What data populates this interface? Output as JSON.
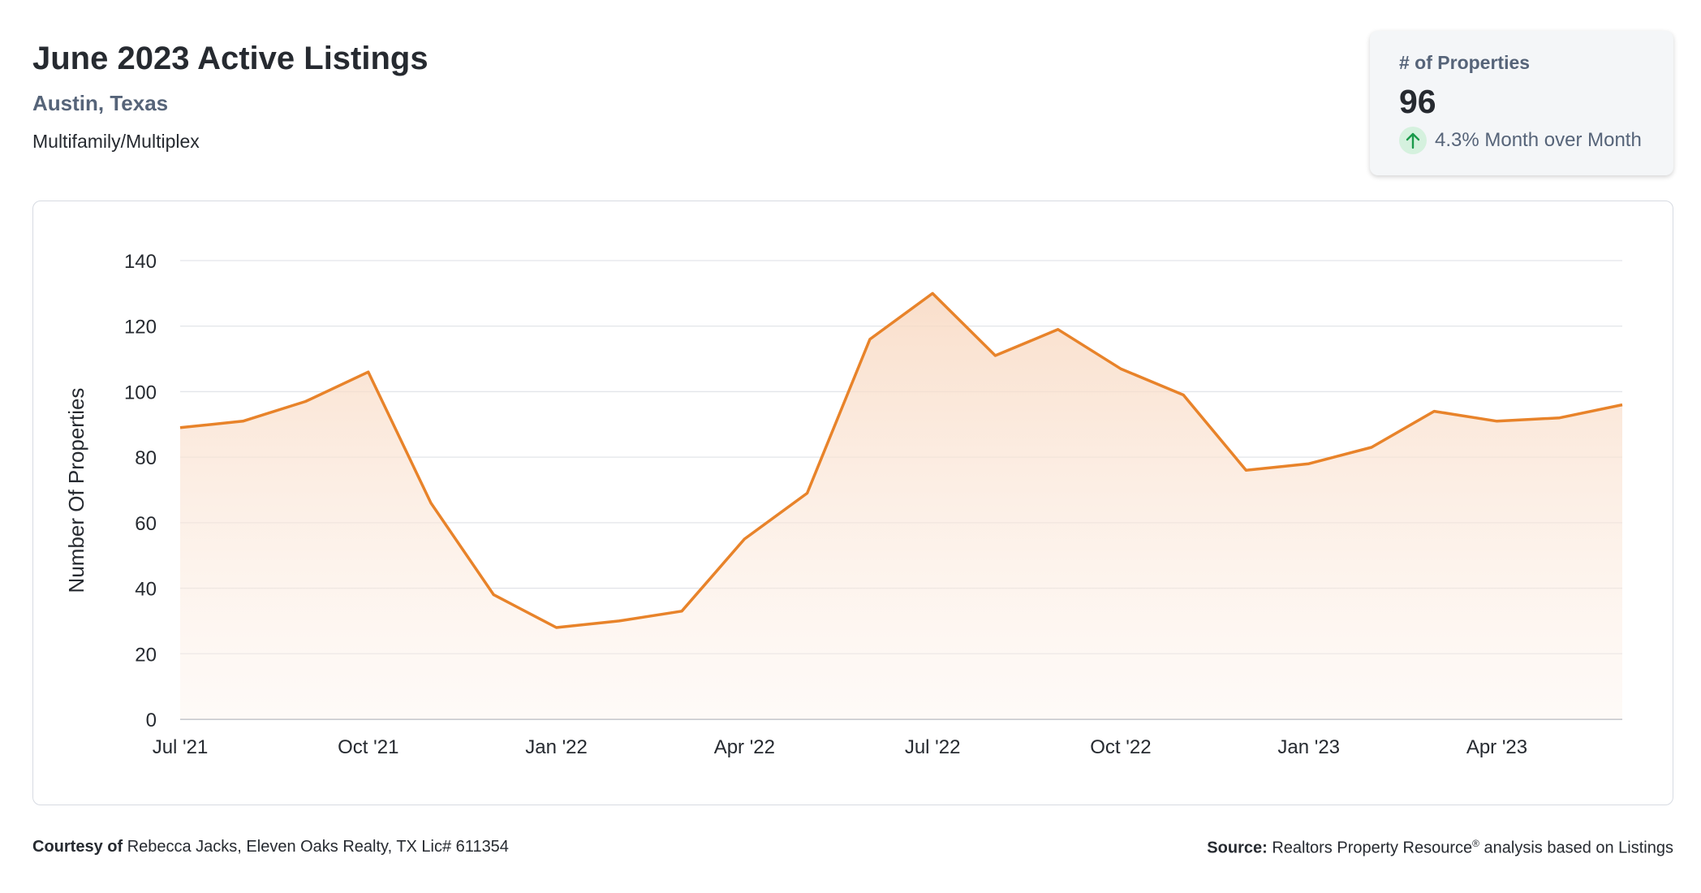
{
  "header": {
    "title": "June 2023 Active Listings",
    "location": "Austin, Texas",
    "property_type": "Multifamily/Multiplex"
  },
  "kpi": {
    "label": "# of Properties",
    "value": "96",
    "change": "4.3% Month over Month",
    "direction_icon": "arrow-up-icon",
    "direction_color": "#1a9a4b"
  },
  "footer": {
    "courtesy_label": "Courtesy of",
    "courtesy_text": "Rebecca Jacks, Eleven Oaks Realty, TX Lic# 611354",
    "source_label": "Source:",
    "source_text": "Realtors Property Resource",
    "source_mark": "®",
    "source_suffix": "analysis based on Listings"
  },
  "colors": {
    "line": "#e8832a",
    "area": "#fbe3d2",
    "grid": "#e3e5e9",
    "axis": "#c9ccd2"
  },
  "chart_data": {
    "type": "area",
    "ylabel": "Number Of Properties",
    "xlabel": "",
    "ylim": [
      0,
      140
    ],
    "yticks": [
      0,
      20,
      40,
      60,
      80,
      100,
      120,
      140
    ],
    "grid": true,
    "x": [
      "2021-07",
      "2021-08",
      "2021-09",
      "2021-10",
      "2021-11",
      "2021-12",
      "2022-01",
      "2022-02",
      "2022-03",
      "2022-04",
      "2022-05",
      "2022-06",
      "2022-07",
      "2022-08",
      "2022-09",
      "2022-10",
      "2022-11",
      "2022-12",
      "2023-01",
      "2023-02",
      "2023-03",
      "2023-04",
      "2023-05",
      "2023-06"
    ],
    "values": [
      89,
      91,
      97,
      106,
      66,
      38,
      28,
      30,
      33,
      55,
      69,
      116,
      130,
      111,
      119,
      107,
      99,
      76,
      78,
      83,
      94,
      91,
      92,
      96
    ],
    "xtick_labels": [
      {
        "x": "2021-07",
        "label": "Jul '21"
      },
      {
        "x": "2021-10",
        "label": "Oct '21"
      },
      {
        "x": "2022-01",
        "label": "Jan '22"
      },
      {
        "x": "2022-04",
        "label": "Apr '22"
      },
      {
        "x": "2022-07",
        "label": "Jul '22"
      },
      {
        "x": "2022-10",
        "label": "Oct '22"
      },
      {
        "x": "2023-01",
        "label": "Jan '23"
      },
      {
        "x": "2023-04",
        "label": "Apr '23"
      }
    ]
  }
}
